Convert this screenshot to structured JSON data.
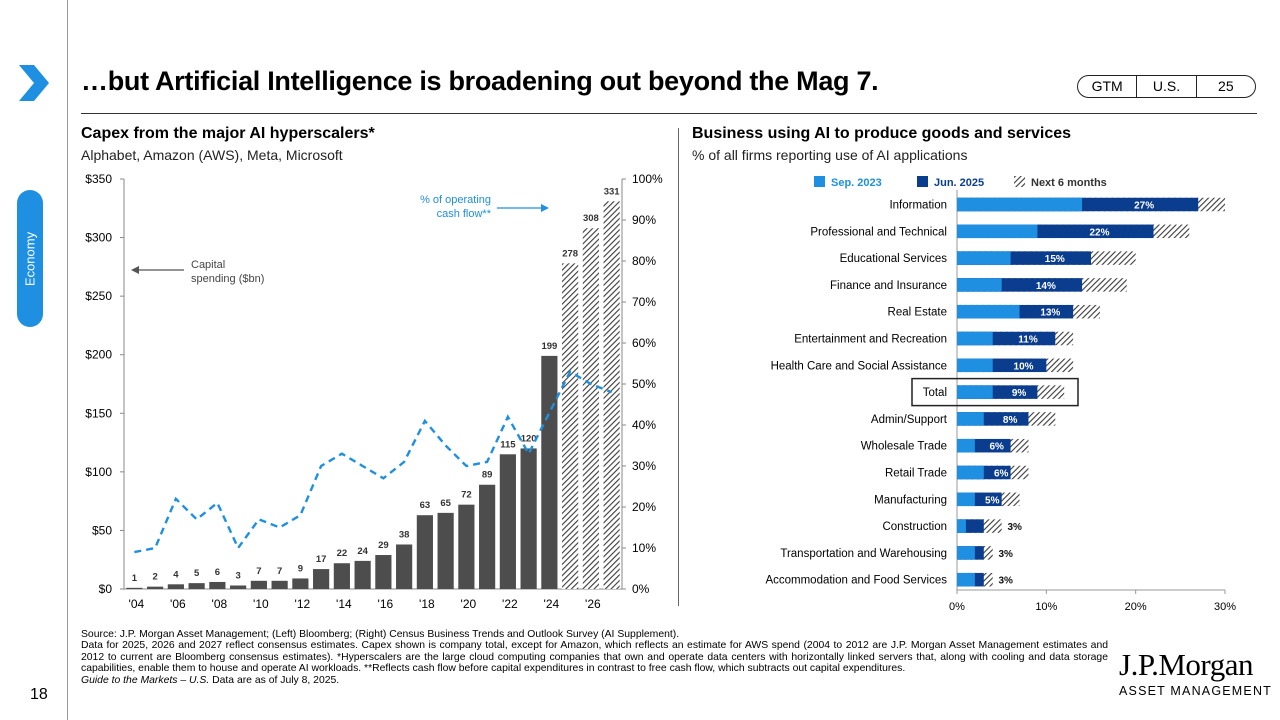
{
  "header": {
    "title": "…but Artificial Intelligence is broadening out beyond the Mag 7.",
    "tags": [
      "GTM",
      "U.S.",
      "25"
    ]
  },
  "sidebar": {
    "tab_label": "Economy",
    "page_number": "18"
  },
  "left_chart_header": {
    "title": "Capex from the major AI hyperscalers*",
    "subtitle": "Alphabet, Amazon (AWS), Meta, Microsoft"
  },
  "right_chart_header": {
    "title": "Business using AI to produce goods and services",
    "subtitle": "% of all firms reporting use of AI applications"
  },
  "chart_data": [
    {
      "type": "bar",
      "title": "Capex from the major AI hyperscalers*",
      "years": [
        2004,
        2005,
        2006,
        2007,
        2008,
        2009,
        2010,
        2011,
        2012,
        2013,
        2014,
        2015,
        2016,
        2017,
        2018,
        2019,
        2020,
        2021,
        2022,
        2023,
        2024,
        2025,
        2026,
        2027
      ],
      "x_tick_labels": [
        "'04",
        "'06",
        "'08",
        "'10",
        "'12",
        "'14",
        "'16",
        "'18",
        "'20",
        "'22",
        "'24",
        "'26"
      ],
      "series": [
        {
          "name": "Capital spending ($bn)",
          "axis": "left",
          "values": [
            1,
            2,
            4,
            5,
            6,
            3,
            7,
            7,
            9,
            17,
            22,
            24,
            29,
            38,
            63,
            65,
            72,
            89,
            115,
            120,
            199,
            278,
            308,
            331
          ],
          "estimate_from_year": 2025
        },
        {
          "name": "% of operating cash flow**",
          "axis": "right",
          "style": "dashed-line",
          "color": "#1e8fe1",
          "values": [
            9,
            10,
            22,
            17,
            21,
            10,
            17,
            15,
            18,
            30,
            33,
            30,
            27,
            31,
            41,
            35,
            30,
            31,
            42,
            33,
            43,
            53,
            50,
            48
          ]
        }
      ],
      "left_axis": {
        "ylim": [
          0,
          350
        ],
        "ticks": [
          "$0",
          "$50",
          "$100",
          "$150",
          "$200",
          "$250",
          "$300",
          "$350"
        ]
      },
      "right_axis": {
        "ylim": [
          0,
          100
        ],
        "ticks": [
          "0%",
          "10%",
          "20%",
          "30%",
          "40%",
          "50%",
          "60%",
          "70%",
          "80%",
          "90%",
          "100%"
        ]
      },
      "annotations": {
        "capex_label": [
          "Capital",
          "spending ($bn)"
        ],
        "ocf_label": [
          "% of operating",
          "cash flow**"
        ]
      }
    },
    {
      "type": "bar",
      "orientation": "horizontal",
      "title": "Business using AI to produce goods and services",
      "legend": [
        "Sep. 2023",
        "Jun. 2025",
        "Next 6 months"
      ],
      "colors": {
        "sep2023": "#1e8fe1",
        "jun2025": "#0b3d8f",
        "next6": "hatched"
      },
      "categories": [
        "Information",
        "Professional and Technical",
        "Educational Services",
        "Finance and Insurance",
        "Real Estate",
        "Entertainment and Recreation",
        "Health Care and Social Assistance",
        "Total",
        "Admin/Support",
        "Wholesale Trade",
        "Retail Trade",
        "Manufacturing",
        "Construction",
        "Transportation and Warehousing",
        "Accommodation and Food Services"
      ],
      "sep_2023": [
        14,
        9,
        6,
        5,
        7,
        4,
        4,
        4,
        3,
        2,
        3,
        2,
        1,
        2,
        2
      ],
      "jun_2025": [
        27,
        22,
        15,
        14,
        13,
        11,
        10,
        9,
        8,
        6,
        6,
        5,
        3,
        3,
        3
      ],
      "next_6_months": [
        30,
        26,
        20,
        19,
        16,
        13,
        13,
        12,
        11,
        8,
        8,
        7,
        5,
        4,
        4
      ],
      "labels": [
        "27%",
        "22%",
        "15%",
        "14%",
        "13%",
        "11%",
        "10%",
        "9%",
        "8%",
        "6%",
        "6%",
        "5%",
        "3%",
        "3%",
        "3%"
      ],
      "highlighted_category": "Total",
      "x_axis": {
        "xlim": [
          0,
          30
        ],
        "ticks": [
          "0%",
          "10%",
          "20%",
          "30%"
        ]
      }
    }
  ],
  "footer": {
    "source": "Source: J.P. Morgan Asset Management; (Left) Bloomberg; (Right) Census Business Trends and Outlook Survey (AI Supplement).",
    "notes": "Data for 2025, 2026 and 2027 reflect consensus estimates. Capex shown is company total, except for Amazon, which reflects an estimate for AWS spend (2004 to 2012 are J.P. Morgan Asset Management estimates and 2012 to current are Bloomberg consensus estimates). *Hyperscalers are the large cloud computing companies that own and operate data centers with horizontally linked servers that, along with cooling and data storage capabilities, enable them to house and operate AI workloads. **Reflects cash flow before capital expenditures in contrast to free cash flow, which subtracts out capital expenditures.",
    "guide": "Guide to the Markets – U.S.",
    "data_as_of": " Data are as of July 8, 2025."
  },
  "logo": {
    "name": "J.P.Morgan",
    "tagline": "ASSET MANAGEMENT"
  }
}
